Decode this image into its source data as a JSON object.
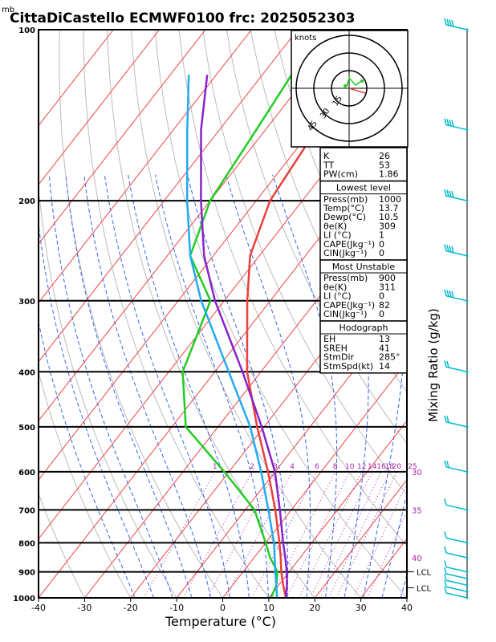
{
  "header": {
    "unit_label": "mb",
    "title": "CittaDiCastello  ECMWF0100  frc: 2025052303"
  },
  "colors": {
    "temperature": "#e8403c",
    "dewpoint": "#22cc22",
    "parcel": "#8822cc",
    "wetbulb": "#22aaee",
    "isotherm": "#ee4444",
    "dry_adiabat": "#bbbbbb",
    "moist_adiabat": "#3366ee",
    "mixing_ratio": "#aa22aa",
    "barbs": "#00bbcc"
  },
  "chart_data": {
    "type": "skew-t",
    "title": "CittaDiCastello  ECMWF0100  frc: 2025052303",
    "xlabel": "Temperature (°C)",
    "ylabel": "mb",
    "right_label": "Mixing Ratio (g/kg)",
    "xlim": [
      -40,
      40
    ],
    "ylim": [
      1000,
      100
    ],
    "x_ticks": [
      -40,
      -30,
      -20,
      -10,
      0,
      10,
      20,
      30,
      40
    ],
    "p_ticks": [
      1000,
      900,
      800,
      700,
      600,
      500,
      400,
      300,
      200,
      100
    ],
    "mixing_ratio_labels": [
      "1",
      "2",
      "3",
      "4",
      "6",
      "8",
      "10",
      "12",
      "14",
      "16",
      "18",
      "20",
      "25",
      "30"
    ],
    "right_side_labels": [
      {
        "text": "30",
        "p": 600
      },
      {
        "text": "35",
        "p": 700
      },
      {
        "text": "40",
        "p": 850
      },
      {
        "text": "LCL",
        "p": 900
      },
      {
        "text": "LCL",
        "p": 960
      }
    ],
    "series": [
      {
        "key": "temperature",
        "points": [
          [
            1000,
            13.7
          ],
          [
            950,
            11
          ],
          [
            900,
            8.3
          ],
          [
            850,
            5.8
          ],
          [
            800,
            3
          ],
          [
            700,
            -3.5
          ],
          [
            600,
            -11.5
          ],
          [
            500,
            -21.5
          ],
          [
            400,
            -33
          ],
          [
            300,
            -45
          ],
          [
            250,
            -52
          ],
          [
            200,
            -57
          ],
          [
            150,
            -59
          ],
          [
            100,
            -63
          ]
        ]
      },
      {
        "key": "dewpoint",
        "points": [
          [
            1000,
            10.5
          ],
          [
            950,
            9.5
          ],
          [
            900,
            7.5
          ],
          [
            850,
            3.5
          ],
          [
            800,
            0
          ],
          [
            700,
            -8
          ],
          [
            600,
            -21
          ],
          [
            500,
            -37
          ],
          [
            400,
            -47
          ],
          [
            300,
            -53
          ],
          [
            250,
            -65
          ],
          [
            200,
            -70
          ],
          [
            150,
            -72
          ],
          [
            100,
            -75
          ]
        ]
      },
      {
        "key": "parcel",
        "points": [
          [
            1000,
            13.7
          ],
          [
            950,
            11.8
          ],
          [
            900,
            9.5
          ],
          [
            850,
            6.8
          ],
          [
            800,
            3.8
          ],
          [
            700,
            -2.5
          ],
          [
            600,
            -10
          ],
          [
            500,
            -20.5
          ],
          [
            400,
            -34
          ],
          [
            300,
            -52
          ],
          [
            250,
            -62
          ],
          [
            200,
            -72
          ],
          [
            150,
            -84
          ],
          [
            120,
            -92
          ]
        ]
      },
      {
        "key": "wetbulb",
        "points": [
          [
            1000,
            11.8
          ],
          [
            950,
            9.5
          ],
          [
            900,
            7
          ],
          [
            850,
            4.5
          ],
          [
            800,
            1.8
          ],
          [
            700,
            -5
          ],
          [
            600,
            -13
          ],
          [
            500,
            -23
          ],
          [
            400,
            -37
          ],
          [
            300,
            -55
          ],
          [
            250,
            -65
          ],
          [
            200,
            -75
          ],
          [
            150,
            -87
          ],
          [
            120,
            -96
          ]
        ]
      }
    ],
    "wind_barbs_p": [
      100,
      150,
      200,
      250,
      300,
      400,
      500,
      600,
      700,
      800,
      850,
      900,
      925,
      950,
      975,
      1000
    ]
  },
  "hodograph": {
    "unit": "knots",
    "ring_labels": [
      "15",
      "30",
      "45"
    ]
  },
  "indices": {
    "top": [
      {
        "label": "K",
        "value": "26"
      },
      {
        "label": "TT",
        "value": "53"
      },
      {
        "label": "PW(cm)",
        "value": "1.86"
      }
    ],
    "lowest_title": "Lowest level",
    "lowest": [
      {
        "label": "Press(mb)",
        "value": "1000"
      },
      {
        "label": "Temp(°C)",
        "value": "13.7"
      },
      {
        "label": "Dewp(°C)",
        "value": "10.5"
      },
      {
        "label": "θe(K)",
        "value": "309"
      },
      {
        "label": "LI (°C)",
        "value": "1"
      },
      {
        "label": "CAPE(Jkg⁻¹)",
        "value": "0"
      },
      {
        "label": "CIN(Jkg⁻¹)",
        "value": "0"
      }
    ],
    "unstable_title": "Most Unstable",
    "unstable": [
      {
        "label": "Press(mb)",
        "value": "900"
      },
      {
        "label": "θe(K)",
        "value": "311"
      },
      {
        "label": "LI (°C)",
        "value": "0"
      },
      {
        "label": "CAPE(Jkg⁻¹)",
        "value": "82"
      },
      {
        "label": "CIN(Jkg⁻¹)",
        "value": "0"
      }
    ],
    "hodo_title": "Hodograph",
    "hodo": [
      {
        "label": "EH",
        "value": "13"
      },
      {
        "label": "SREH",
        "value": "41"
      },
      {
        "label": "StmDir",
        "value": "285°"
      },
      {
        "label": "StmSpd(kt)",
        "value": "14"
      }
    ]
  }
}
